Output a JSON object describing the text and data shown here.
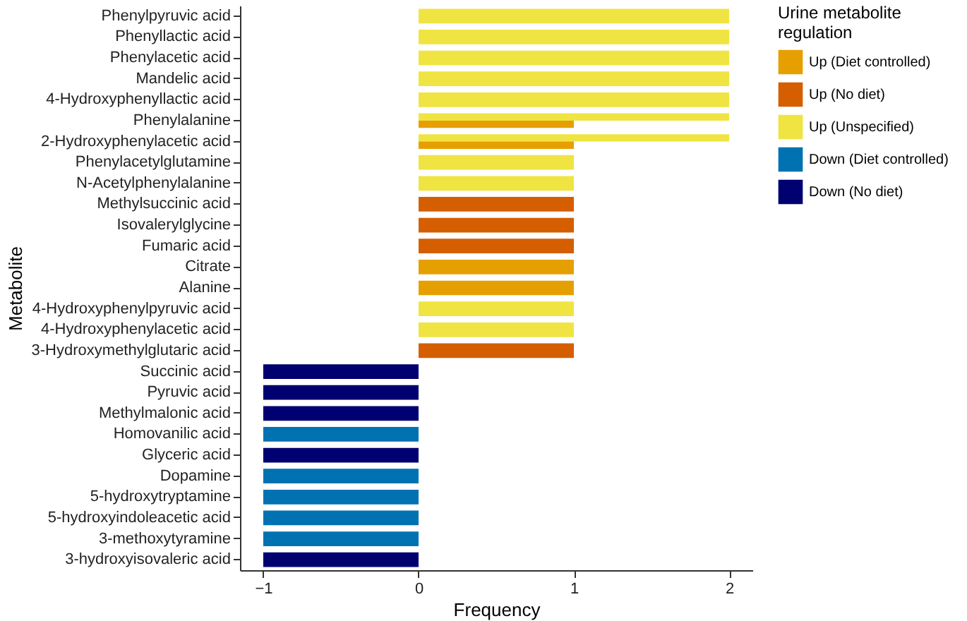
{
  "chart_data": {
    "type": "bar",
    "orientation": "horizontal",
    "xlabel": "Frequency",
    "ylabel": "Metabolite",
    "legend_title": "Urine metabolite regulation",
    "legend": "right",
    "grid": false,
    "categories": [
      "Phenylpyruvic acid",
      "Phenyllactic acid",
      "Phenylacetic acid",
      "Mandelic acid",
      "4-Hydroxyphenyllactic acid",
      "Phenylalanine",
      "2-Hydroxyphenylacetic acid",
      "Phenylacetylglutamine",
      "N-Acetylphenylalanine",
      "Methylsuccinic acid",
      "Isovalerylglycine",
      "Fumaric acid",
      "Citrate",
      "Alanine",
      "4-Hydroxyphenylpyruvic acid",
      "4-Hydroxyphenylacetic acid",
      "3-Hydroxymethylglutaric acid",
      "Succinic acid",
      "Pyruvic acid",
      "Methylmalonic acid",
      "Homovanilic acid",
      "Glyceric acid",
      "Dopamine",
      "5-hydroxytryptamine",
      "5-hydroxyindoleacetic acid",
      "3-methoxytyramine",
      "3-hydroxyisovaleric acid"
    ],
    "series": [
      {
        "name": "Up (Diet controlled)",
        "color": "#e69f00",
        "values": [
          null,
          null,
          null,
          null,
          null,
          1,
          1,
          null,
          null,
          null,
          null,
          null,
          1,
          1,
          null,
          null,
          null,
          null,
          null,
          null,
          null,
          null,
          null,
          null,
          null,
          null,
          null
        ]
      },
      {
        "name": "Up (No diet)",
        "color": "#d55e00",
        "values": [
          null,
          null,
          null,
          null,
          null,
          null,
          null,
          null,
          null,
          1,
          1,
          1,
          null,
          null,
          null,
          null,
          1,
          null,
          null,
          null,
          null,
          null,
          null,
          null,
          null,
          null,
          null
        ]
      },
      {
        "name": "Up (Unspecified)",
        "color": "#f0e442",
        "values": [
          2,
          2,
          2,
          2,
          2,
          2,
          2,
          1,
          1,
          null,
          null,
          null,
          null,
          null,
          1,
          1,
          null,
          null,
          null,
          null,
          null,
          null,
          null,
          null,
          null,
          null,
          null
        ]
      },
      {
        "name": "Down (Diet controlled)",
        "color": "#0072b2",
        "values": [
          null,
          null,
          null,
          null,
          null,
          null,
          null,
          null,
          null,
          null,
          null,
          null,
          null,
          null,
          null,
          null,
          null,
          null,
          null,
          null,
          -1,
          null,
          -1,
          -1,
          -1,
          -1,
          null
        ]
      },
      {
        "name": "Down (No diet)",
        "color": "#000070",
        "values": [
          null,
          null,
          null,
          null,
          null,
          null,
          null,
          null,
          null,
          null,
          null,
          null,
          null,
          null,
          null,
          null,
          null,
          -1,
          -1,
          -1,
          null,
          -1,
          null,
          null,
          null,
          null,
          -1
        ]
      }
    ],
    "xlim": [
      -1.15,
      2.15
    ],
    "xticks": [
      -1,
      0,
      1,
      2
    ]
  }
}
